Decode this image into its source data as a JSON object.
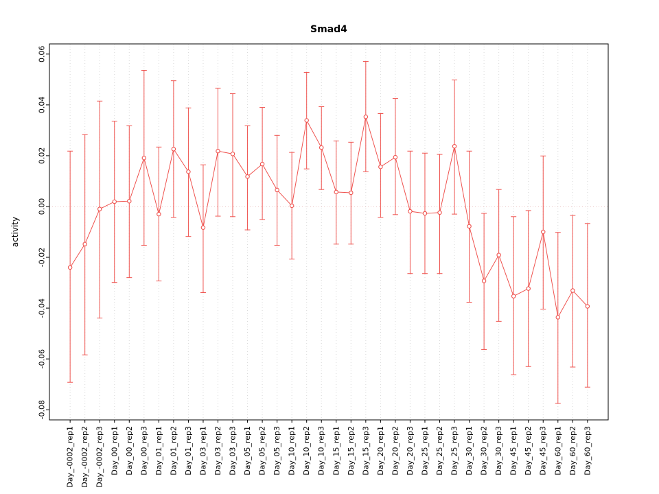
{
  "page": {
    "background": "#ffffff"
  },
  "chart_data": {
    "type": "line",
    "title": "Smad4",
    "xlabel": "",
    "ylabel": "activity",
    "point_style": "open-circle",
    "error_bars": true,
    "grid": "vertical-dotted",
    "legend": "none",
    "ylim": [
      -0.084,
      0.064
    ],
    "yticks": [
      -0.08,
      -0.06,
      -0.04,
      -0.02,
      0.0,
      0.02,
      0.04,
      0.06
    ],
    "colors": {
      "series": "#ef534f",
      "grid": "#d8d8d8",
      "zero_line": "#e8c0c0",
      "axis": "#000000",
      "background": "#ffffff"
    },
    "categories": [
      "Day_-0002_rep1",
      "Day_-0002_rep2",
      "Day_-0002_rep3",
      "Day_00_rep1",
      "Day_00_rep2",
      "Day_00_rep3",
      "Day_01_rep1",
      "Day_01_rep2",
      "Day_01_rep3",
      "Day_03_rep1",
      "Day_03_rep2",
      "Day_03_rep3",
      "Day_05_rep1",
      "Day_05_rep2",
      "Day_05_rep3",
      "Day_10_rep1",
      "Day_10_rep2",
      "Day_10_rep3",
      "Day_15_rep1",
      "Day_15_rep2",
      "Day_15_rep3",
      "Day_20_rep1",
      "Day_20_rep2",
      "Day_20_rep3",
      "Day_25_rep1",
      "Day_25_rep2",
      "Day_25_rep3",
      "Day_30_rep1",
      "Day_30_rep2",
      "Day_30_rep3",
      "Day_45_rep1",
      "Day_45_rep2",
      "Day_45_rep3",
      "Day_60_rep1",
      "Day_60_rep2",
      "Day_60_rep3"
    ],
    "series": [
      {
        "name": "Smad4",
        "values": [
          -0.024,
          -0.0148,
          -0.001,
          0.0019,
          0.0021,
          0.0191,
          -0.003,
          0.0226,
          0.0137,
          -0.0083,
          0.0218,
          0.0207,
          0.0118,
          0.0167,
          0.0065,
          0.0003,
          0.0339,
          0.0232,
          0.0057,
          0.0054,
          0.0353,
          0.0156,
          0.0194,
          -0.0019,
          -0.0027,
          -0.0024,
          0.0237,
          -0.0078,
          -0.0293,
          -0.0191,
          -0.0353,
          -0.0323,
          -0.01,
          -0.0436,
          -0.0331,
          -0.0393
        ],
        "err_high": [
          0.0218,
          0.0283,
          0.0415,
          0.0336,
          0.0318,
          0.0536,
          0.0234,
          0.0495,
          0.0388,
          0.0164,
          0.0466,
          0.0444,
          0.0318,
          0.039,
          0.028,
          0.0213,
          0.0528,
          0.0393,
          0.0258,
          0.0253,
          0.0571,
          0.0366,
          0.0425,
          0.0218,
          0.021,
          0.0205,
          0.0498,
          0.0218,
          -0.0027,
          0.0067,
          -0.004,
          -0.0016,
          0.0199,
          -0.0102,
          -0.0035,
          -0.0067
        ],
        "err_low": [
          -0.0692,
          -0.0584,
          -0.0439,
          -0.0299,
          -0.028,
          -0.0153,
          -0.0293,
          -0.0043,
          -0.0118,
          -0.0339,
          -0.0038,
          -0.004,
          -0.0092,
          -0.0051,
          -0.0153,
          -0.0207,
          0.0148,
          0.0067,
          -0.0148,
          -0.0148,
          0.0137,
          -0.0043,
          -0.0032,
          -0.0264,
          -0.0264,
          -0.0264,
          -0.003,
          -0.0377,
          -0.0563,
          -0.0452,
          -0.0662,
          -0.063,
          -0.0404,
          -0.0775,
          -0.0632,
          -0.0711
        ]
      }
    ]
  }
}
